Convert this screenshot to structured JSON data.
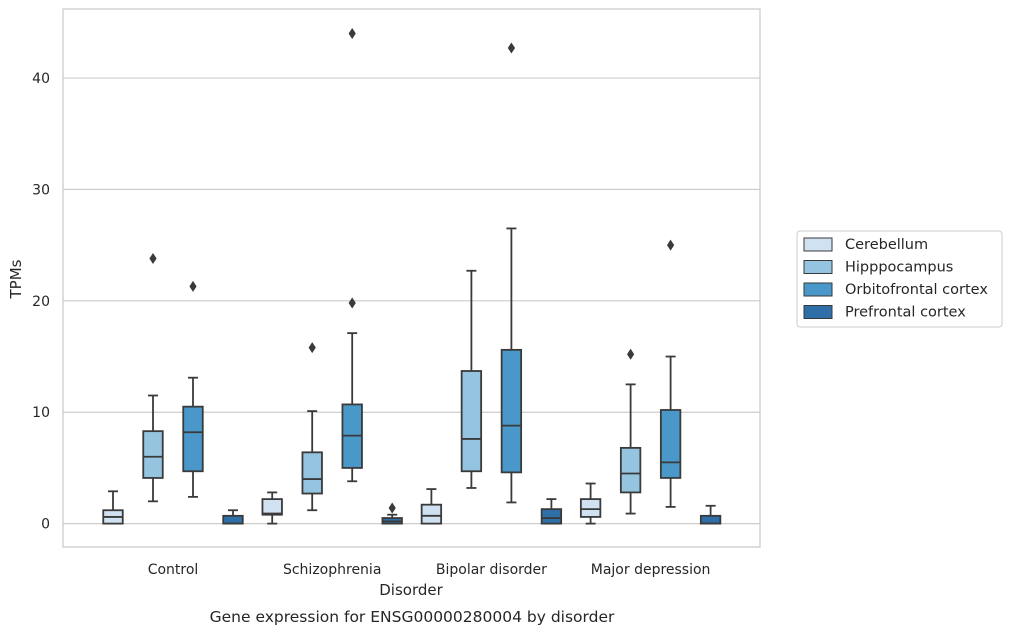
{
  "chart_data": {
    "type": "box",
    "caption": "Gene expression for ENSG00000280004 by disorder",
    "xlabel": "Disorder",
    "ylabel": "TPMs",
    "ylim": [
      -2.1,
      46.2
    ],
    "yticks": [
      0,
      10,
      20,
      30,
      40
    ],
    "grid": "horizontal",
    "legend_placement": "right",
    "categories": [
      "Control",
      "Schizophrenia",
      "Bipolar disorder",
      "Major depression"
    ],
    "series": [
      {
        "name": "Cerebellum",
        "color": "#d0e1f2",
        "boxes": [
          {
            "whisker_low": 0.0,
            "q1": 0.0,
            "median": 0.6,
            "q3": 1.2,
            "whisker_high": 2.9,
            "outliers": []
          },
          {
            "whisker_low": 0.0,
            "q1": 0.8,
            "median": 0.9,
            "q3": 2.2,
            "whisker_high": 2.8,
            "outliers": []
          },
          {
            "whisker_low": 0.0,
            "q1": 0.0,
            "median": 0.7,
            "q3": 1.7,
            "whisker_high": 3.1,
            "outliers": []
          },
          {
            "whisker_low": 0.0,
            "q1": 0.6,
            "median": 1.3,
            "q3": 2.2,
            "whisker_high": 3.6,
            "outliers": []
          }
        ]
      },
      {
        "name": "Hipppocampus",
        "color": "#94c4df",
        "boxes": [
          {
            "whisker_low": 2.0,
            "q1": 4.1,
            "median": 6.0,
            "q3": 8.3,
            "whisker_high": 11.5,
            "outliers": [
              23.8
            ]
          },
          {
            "whisker_low": 1.2,
            "q1": 2.7,
            "median": 4.0,
            "q3": 6.4,
            "whisker_high": 10.1,
            "outliers": [
              15.8
            ]
          },
          {
            "whisker_low": 3.2,
            "q1": 4.7,
            "median": 7.6,
            "q3": 13.7,
            "whisker_high": 22.7,
            "outliers": []
          },
          {
            "whisker_low": 0.9,
            "q1": 2.8,
            "median": 4.5,
            "q3": 6.8,
            "whisker_high": 12.5,
            "outliers": [
              15.2
            ]
          }
        ]
      },
      {
        "name": "Orbitofrontal cortex",
        "color": "#4a98c9",
        "boxes": [
          {
            "whisker_low": 2.4,
            "q1": 4.7,
            "median": 8.2,
            "q3": 10.5,
            "whisker_high": 13.1,
            "outliers": [
              21.3
            ]
          },
          {
            "whisker_low": 3.8,
            "q1": 5.0,
            "median": 7.9,
            "q3": 10.7,
            "whisker_high": 17.1,
            "outliers": [
              19.8,
              44.0
            ]
          },
          {
            "whisker_low": 1.9,
            "q1": 4.6,
            "median": 8.8,
            "q3": 15.6,
            "whisker_high": 26.5,
            "outliers": [
              42.7
            ]
          },
          {
            "whisker_low": 1.5,
            "q1": 4.1,
            "median": 5.5,
            "q3": 10.2,
            "whisker_high": 15.0,
            "outliers": [
              25.0
            ]
          }
        ]
      },
      {
        "name": "Prefrontal cortex",
        "color": "#2e6fa8",
        "boxes": [
          {
            "whisker_low": 0.0,
            "q1": 0.0,
            "median": 0.0,
            "q3": 0.7,
            "whisker_high": 1.2,
            "outliers": []
          },
          {
            "whisker_low": 0.0,
            "q1": 0.0,
            "median": 0.2,
            "q3": 0.5,
            "whisker_high": 0.8,
            "outliers": [
              1.4
            ]
          },
          {
            "whisker_low": 0.0,
            "q1": 0.0,
            "median": 0.5,
            "q3": 1.3,
            "whisker_high": 2.2,
            "outliers": []
          },
          {
            "whisker_low": 0.0,
            "q1": 0.0,
            "median": 0.0,
            "q3": 0.7,
            "whisker_high": 1.6,
            "outliers": []
          }
        ]
      }
    ]
  }
}
